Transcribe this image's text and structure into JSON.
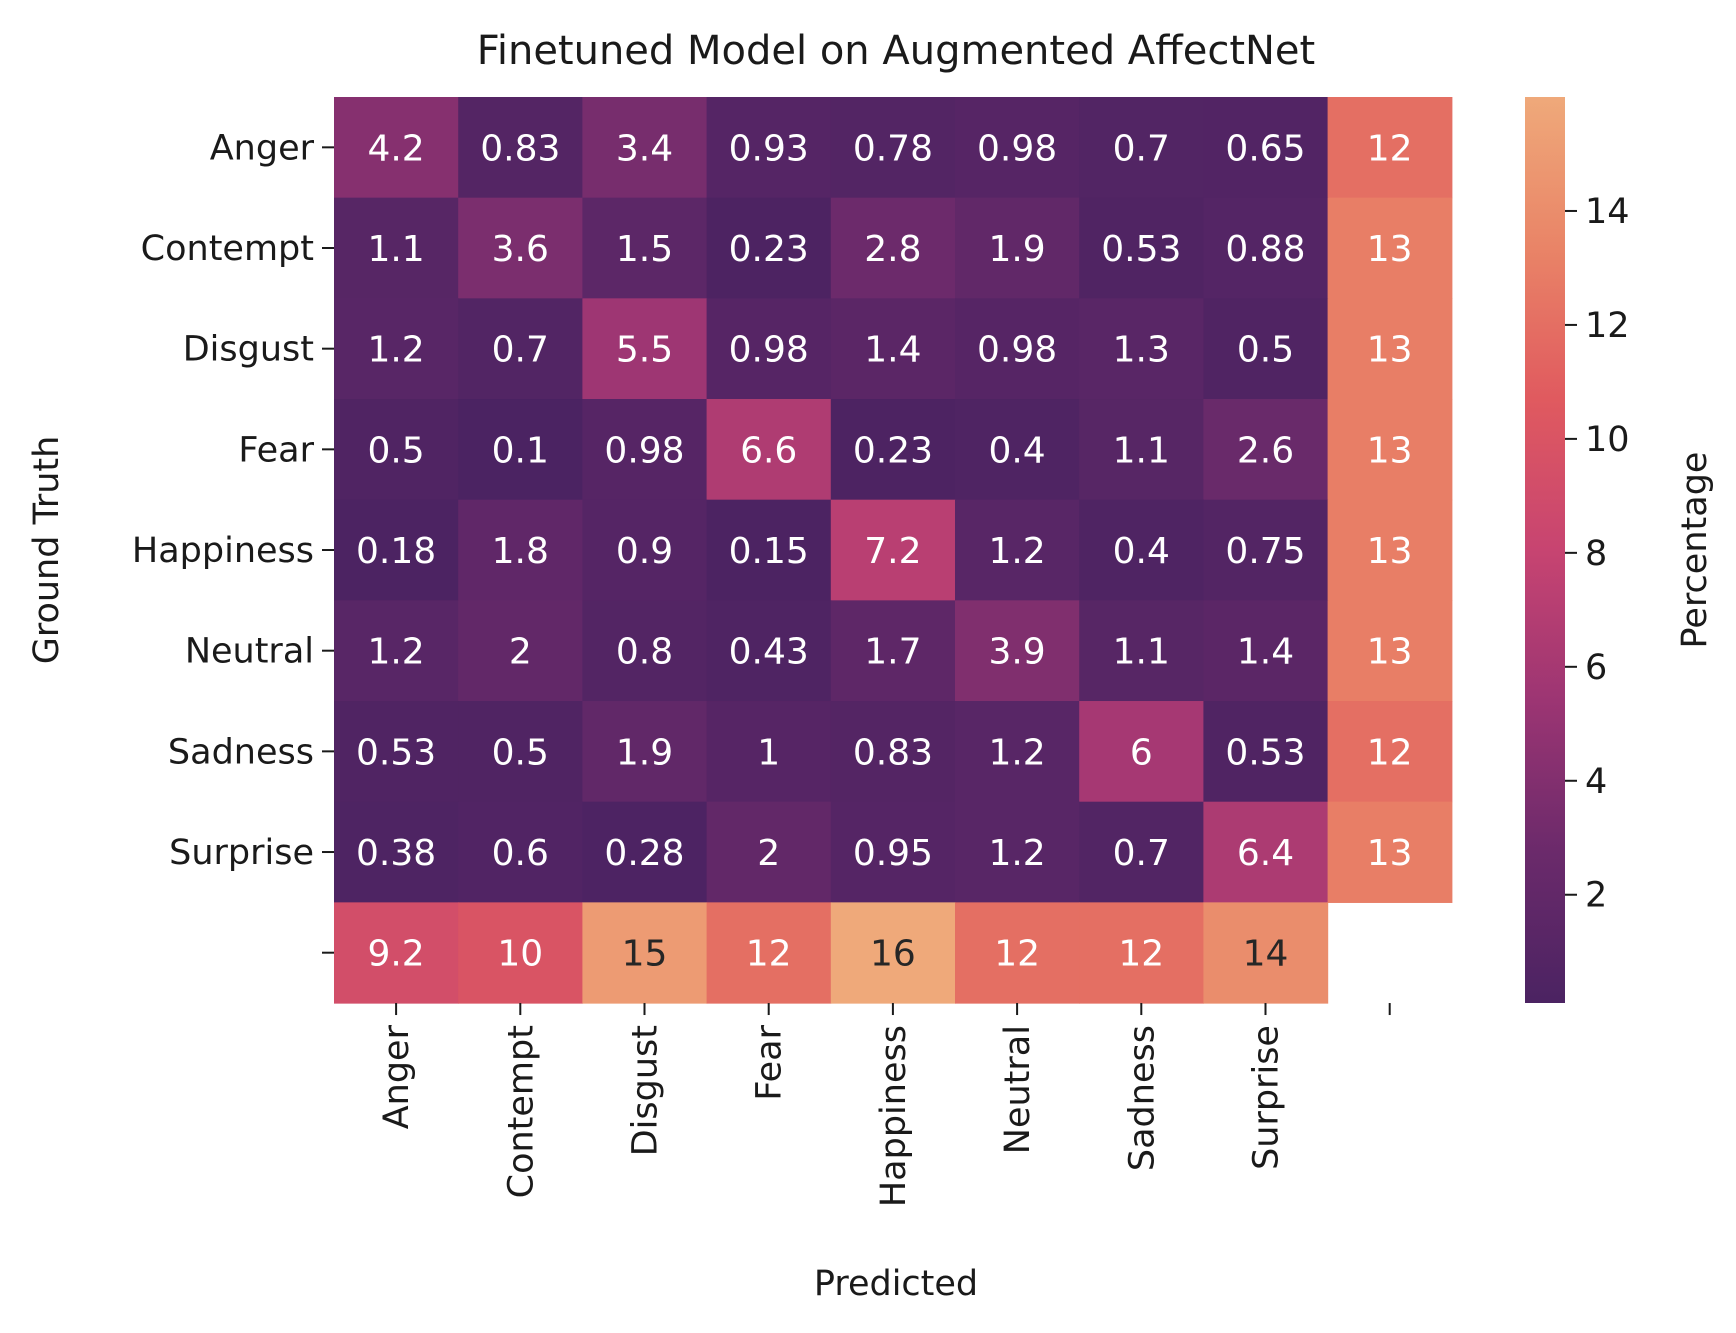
{
  "chart_data": {
    "type": "heatmap",
    "title": "Finetuned Model on Augmented AffectNet",
    "xlabel": "Predicted",
    "ylabel": "Ground Truth",
    "x_categories": [
      "Anger",
      "Contempt",
      "Disgust",
      "Fear",
      "Happiness",
      "Neutral",
      "Sadness",
      "Surprise",
      ""
    ],
    "y_categories": [
      "Anger",
      "Contempt",
      "Disgust",
      "Fear",
      "Happiness",
      "Neutral",
      "Sadness",
      "Surprise",
      ""
    ],
    "values": [
      [
        4.2,
        0.83,
        3.4,
        0.93,
        0.78,
        0.98,
        0.7,
        0.65,
        12
      ],
      [
        1.1,
        3.6,
        1.5,
        0.23,
        2.8,
        1.9,
        0.53,
        0.88,
        13
      ],
      [
        1.2,
        0.7,
        5.5,
        0.98,
        1.4,
        0.98,
        1.3,
        0.5,
        13
      ],
      [
        0.5,
        0.1,
        0.98,
        6.6,
        0.23,
        0.4,
        1.1,
        2.6,
        13
      ],
      [
        0.18,
        1.8,
        0.9,
        0.15,
        7.2,
        1.2,
        0.4,
        0.75,
        13
      ],
      [
        1.2,
        2,
        0.8,
        0.43,
        1.7,
        3.9,
        1.1,
        1.4,
        13
      ],
      [
        0.53,
        0.5,
        1.9,
        1,
        0.83,
        1.2,
        6,
        0.53,
        12
      ],
      [
        0.38,
        0.6,
        0.28,
        2,
        0.95,
        1.2,
        0.7,
        6.4,
        13
      ],
      [
        9.2,
        10,
        15,
        12,
        16,
        12,
        12,
        14,
        null
      ]
    ],
    "colorbar": {
      "label": "Percentage",
      "range": [
        0.1,
        16
      ],
      "ticks": [
        2,
        4,
        6,
        8,
        10,
        12,
        14
      ],
      "colormap": "flare_r",
      "colors": [
        "#4b2362",
        "#6b2a6b",
        "#9c3573",
        "#c74471",
        "#e05a5f",
        "#e98467",
        "#efa97a"
      ]
    },
    "grid": false,
    "legend": "none"
  }
}
